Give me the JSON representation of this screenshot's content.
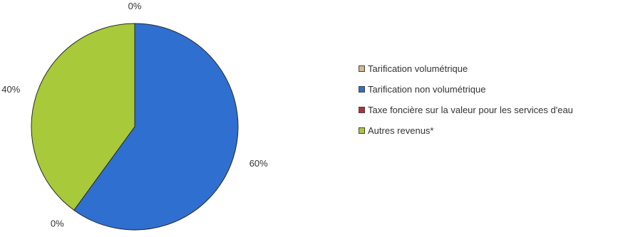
{
  "chart_data": {
    "type": "pie",
    "categories": [
      "Tarification volumétrique",
      "Tarification non volumétrique",
      "Taxe foncière sur la valeur pour les services d'eau",
      "Autres revenus*"
    ],
    "values": [
      0,
      60,
      0,
      40
    ],
    "value_labels": [
      "0%",
      "60%",
      "0%",
      "40%"
    ],
    "colors": [
      "#d9b98a",
      "#2f6fcf",
      "#b0303a",
      "#a8c93a"
    ],
    "title": "",
    "legend_position": "right",
    "start_angle": "top",
    "direction": "clockwise"
  }
}
